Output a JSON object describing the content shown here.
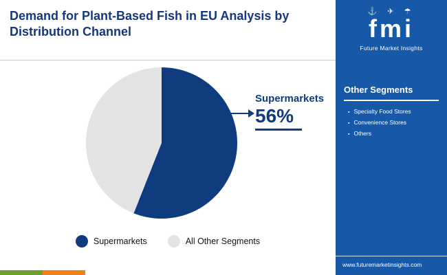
{
  "header": {
    "title": "Demand for Plant-Based Fish in EU Analysis by Distribution Channel"
  },
  "chart_data": {
    "type": "pie",
    "title": "Demand for Plant-Based Fish in EU Analysis by Distribution Channel",
    "slices": [
      {
        "label": "Supermarkets",
        "value": 56,
        "color": "#0e3c7e"
      },
      {
        "label": "All Other Segments",
        "value": 44,
        "color": "#e3e3e3"
      }
    ],
    "callout": {
      "label": "Supermarkets",
      "value": "56%"
    },
    "legend_position": "bottom"
  },
  "legend": [
    {
      "label": "Supermarkets"
    },
    {
      "label": "All Other Segments"
    }
  ],
  "sidebar": {
    "logo": {
      "icons": "⚓ ✈ ☂",
      "text": "fmi",
      "subtitle": "Future Market Insights"
    },
    "other_segments": {
      "heading": "Other Segments",
      "items": [
        "Specialty Food Stores",
        "Convenience Stores",
        "Others"
      ]
    },
    "website": "www.futuremarketinsights.com"
  },
  "colors": {
    "panel": "#1659a8",
    "navy": "#0e3c7e",
    "strip": [
      "#6ca12f",
      "#f08019"
    ]
  }
}
